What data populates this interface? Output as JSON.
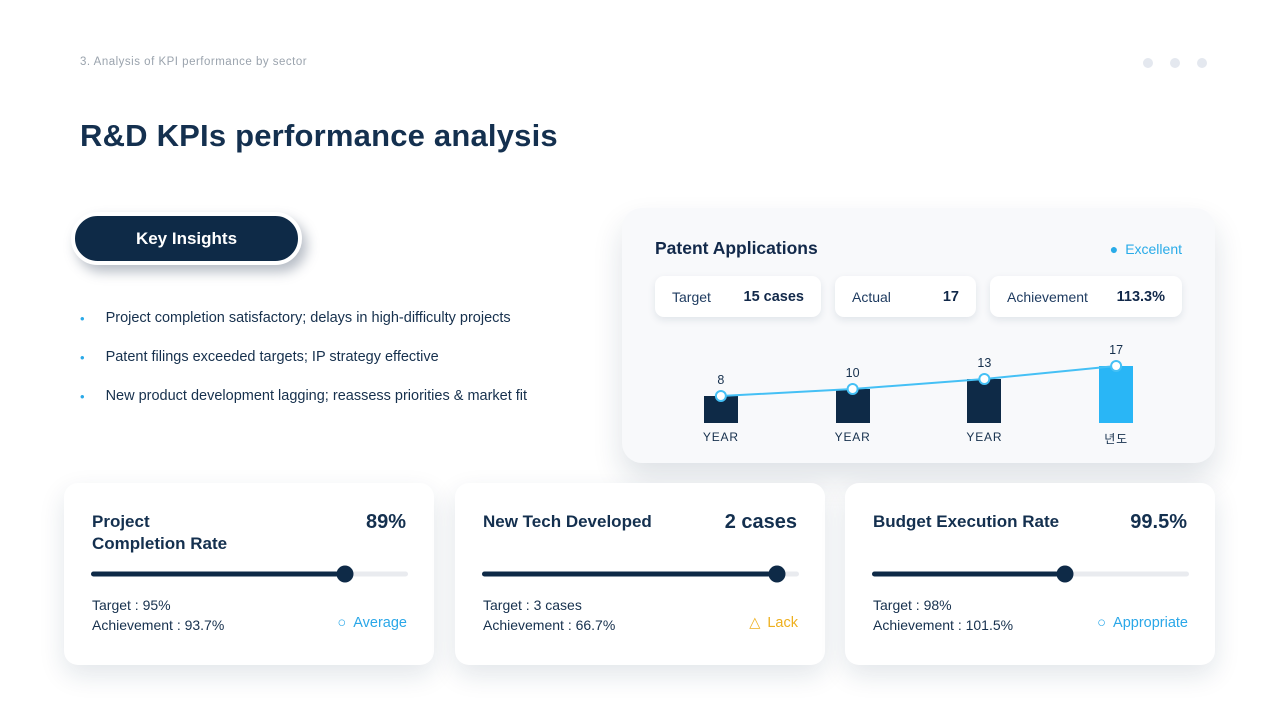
{
  "page": {
    "kicker": "3. Analysis of KPI performance by sector",
    "title": "R&D KPIs performance analysis",
    "slide_dot_count": 3
  },
  "theme": {
    "navy": "#0e2a47",
    "text_navy": "#14304f",
    "accent_blue": "#29abe8",
    "amber": "#eeb01f",
    "card_bg": "#f8f9fb",
    "track_gray": "#e9ebef"
  },
  "key_insights": {
    "button_label": "Key Insights",
    "bullets": [
      "Project completion satisfactory; delays in high-difficulty  projects",
      "Patent filings exceeded targets; IP strategy effective",
      "New product development lagging; reassess priorities & market fit"
    ]
  },
  "patent_card": {
    "title": "Patent Applications",
    "status": {
      "icon": "●",
      "label": "Excellent",
      "color": "#29abe8"
    },
    "stats": [
      {
        "label": "Target",
        "value": "15 cases"
      },
      {
        "label": "Actual",
        "value": "17"
      },
      {
        "label": "Achievement",
        "value": "113.3%"
      }
    ]
  },
  "chart_data": {
    "type": "bar",
    "title": "Patent Applications trend",
    "categories": [
      "YEAR",
      "YEAR",
      "YEAR",
      "년도"
    ],
    "values": [
      8,
      10,
      13,
      17
    ],
    "bar_colors": [
      "#0e2a47",
      "#0e2a47",
      "#0e2a47",
      "#29b6f6"
    ],
    "line_overlay": true,
    "line_color": "#45c0f5",
    "marker_fill": "#ffffff",
    "value_labels": true,
    "ylim": [
      0,
      20
    ],
    "grid": false,
    "legend": false
  },
  "kpi_cards": [
    {
      "title": "Project\nCompletion Rate",
      "value": "89%",
      "slider_percent": 80,
      "target": "Target : 95%",
      "achievement": "Achievement : 93.7%",
      "status_icon": "○",
      "status_label": "Average",
      "status_color": "#2aa7e8"
    },
    {
      "title": "New Tech Developed",
      "value": "2 cases",
      "slider_percent": 93,
      "target": "Target : 3 cases",
      "achievement": "Achievement : 66.7%",
      "status_icon": "△",
      "status_label": "Lack",
      "status_color": "#eeb01f"
    },
    {
      "title": "Budget Execution Rate",
      "value": "99.5%",
      "slider_percent": 61,
      "target": "Target : 98%",
      "achievement": "Achievement : 101.5%",
      "status_icon": "○",
      "status_label": "Appropriate",
      "status_color": "#2aa7e8"
    }
  ]
}
